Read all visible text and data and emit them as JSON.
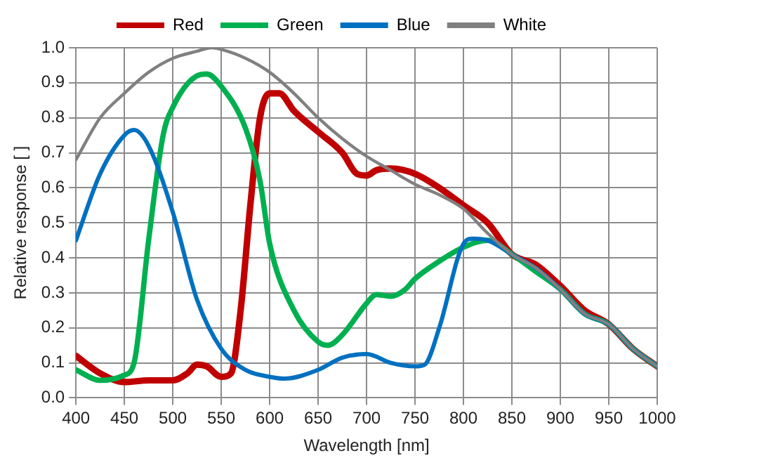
{
  "chart_data": {
    "type": "line",
    "xlabel": "Wavelength [nm]",
    "ylabel": "Relative response [ ]",
    "xlim": [
      400,
      1000
    ],
    "xticks": [
      400,
      450,
      500,
      550,
      600,
      650,
      700,
      750,
      800,
      850,
      900,
      950,
      1000
    ],
    "ylim": [
      0,
      1
    ],
    "yticks": [
      {
        "value": 0,
        "label": "0.0"
      },
      {
        "value": 0.1,
        "label": "0.1"
      },
      {
        "value": 0.2,
        "label": "0.2"
      },
      {
        "value": 0.3,
        "label": "0.3"
      },
      {
        "value": 0.4,
        "label": "0.4"
      },
      {
        "value": 0.5,
        "label": "0.5"
      },
      {
        "value": 0.6,
        "label": "0.6"
      },
      {
        "value": 0.7,
        "label": "0.7"
      },
      {
        "value": 0.8,
        "label": "0.8"
      },
      {
        "value": 0.9,
        "label": "0.9"
      },
      {
        "value": 1,
        "label": "1.0"
      }
    ],
    "grid": true,
    "legend": "top",
    "marker": "none",
    "line_style": "solid",
    "series": [
      {
        "name": "Red",
        "color": "#c00000",
        "x": [
          400,
          425,
          450,
          475,
          500,
          515,
          525,
          535,
          550,
          560,
          570,
          580,
          590,
          600,
          610,
          625,
          650,
          675,
          690,
          700,
          710,
          725,
          750,
          775,
          800,
          825,
          850,
          875,
          900,
          925,
          950,
          975,
          1000
        ],
        "values": [
          0.12,
          0.07,
          0.045,
          0.05,
          0.05,
          0.07,
          0.095,
          0.09,
          0.06,
          0.07,
          0.25,
          0.55,
          0.8,
          0.87,
          0.87,
          0.82,
          0.76,
          0.7,
          0.64,
          0.635,
          0.65,
          0.655,
          0.64,
          0.6,
          0.55,
          0.5,
          0.41,
          0.38,
          0.32,
          0.25,
          0.21,
          0.14,
          0.09
        ]
      },
      {
        "name": "Green",
        "color": "#00b050",
        "x": [
          400,
          425,
          450,
          460,
          475,
          490,
          500,
          525,
          535,
          550,
          575,
          590,
          600,
          625,
          650,
          660,
          675,
          700,
          710,
          725,
          740,
          750,
          775,
          800,
          825,
          850,
          875,
          900,
          925,
          950,
          975,
          1000
        ],
        "values": [
          0.08,
          0.05,
          0.065,
          0.1,
          0.45,
          0.75,
          0.83,
          0.92,
          0.925,
          0.89,
          0.77,
          0.62,
          0.44,
          0.25,
          0.16,
          0.15,
          0.18,
          0.27,
          0.295,
          0.29,
          0.31,
          0.34,
          0.39,
          0.43,
          0.45,
          0.41,
          0.36,
          0.31,
          0.24,
          0.21,
          0.14,
          0.09
        ]
      },
      {
        "name": "Blue",
        "color": "#0070c0",
        "x": [
          400,
          425,
          450,
          460,
          475,
          500,
          525,
          550,
          575,
          600,
          615,
          650,
          675,
          700,
          725,
          750,
          760,
          775,
          800,
          810,
          825,
          850,
          875,
          900,
          925,
          950,
          975,
          1000
        ],
        "values": [
          0.45,
          0.64,
          0.75,
          0.765,
          0.72,
          0.53,
          0.28,
          0.14,
          0.08,
          0.06,
          0.055,
          0.08,
          0.115,
          0.125,
          0.1,
          0.09,
          0.095,
          0.2,
          0.44,
          0.455,
          0.45,
          0.41,
          0.37,
          0.31,
          0.24,
          0.21,
          0.14,
          0.09
        ]
      },
      {
        "name": "White",
        "color": "#808080",
        "x": [
          400,
          425,
          450,
          475,
          500,
          525,
          540,
          550,
          575,
          600,
          625,
          650,
          675,
          700,
          725,
          750,
          775,
          800,
          825,
          850,
          875,
          900,
          925,
          950,
          975,
          1000
        ],
        "values": [
          0.68,
          0.8,
          0.87,
          0.93,
          0.97,
          0.99,
          1,
          0.995,
          0.97,
          0.93,
          0.87,
          0.8,
          0.74,
          0.69,
          0.65,
          0.61,
          0.58,
          0.54,
          0.47,
          0.41,
          0.37,
          0.31,
          0.24,
          0.21,
          0.14,
          0.09
        ]
      }
    ]
  }
}
